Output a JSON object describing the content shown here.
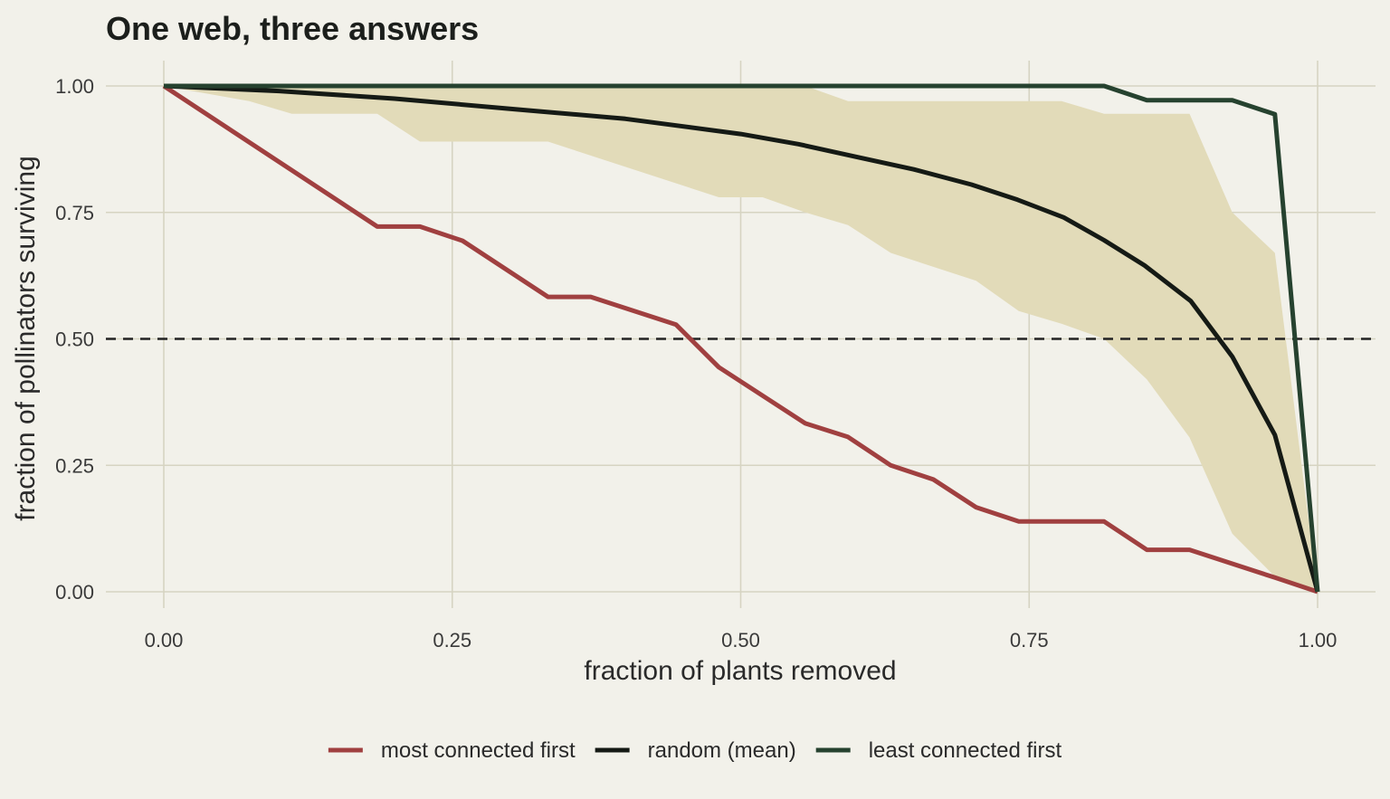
{
  "chart_data": {
    "type": "line",
    "title": "One web, three answers",
    "xlabel": "fraction of plants removed",
    "ylabel": "fraction of pollinators surviving",
    "xlim": [
      0,
      1
    ],
    "ylim": [
      0,
      1
    ],
    "x_ticks": [
      0,
      0.25,
      0.5,
      0.75,
      1.0
    ],
    "y_ticks": [
      0,
      0.25,
      0.5,
      0.75,
      1.0
    ],
    "x_tick_labels": [
      "0.00",
      "0.25",
      "0.50",
      "0.75",
      "1.00"
    ],
    "y_tick_labels": [
      "0.00",
      "0.25",
      "0.50",
      "0.75",
      "1.00"
    ],
    "grid": true,
    "legend_position": "bottom",
    "reference_line": {
      "y": 0.5,
      "style": "dashed",
      "color": "#222222"
    },
    "band": {
      "color": "#e2dbb9",
      "x": [
        0,
        0.037,
        0.074,
        0.111,
        0.185,
        0.222,
        0.333,
        0.407,
        0.481,
        0.519,
        0.556,
        0.593,
        0.63,
        0.704,
        0.741,
        0.778,
        0.815,
        0.852,
        0.889,
        0.926,
        0.963,
        1.0
      ],
      "lower": [
        1.0,
        0.985,
        0.97,
        0.945,
        0.945,
        0.89,
        0.89,
        0.835,
        0.78,
        0.78,
        0.75,
        0.725,
        0.67,
        0.615,
        0.555,
        0.53,
        0.5,
        0.42,
        0.305,
        0.115,
        0.03,
        0.0
      ],
      "upper": [
        1.0,
        1.0,
        1.0,
        1.0,
        1.0,
        1.0,
        1.0,
        1.0,
        1.0,
        1.0,
        1.0,
        0.97,
        0.97,
        0.97,
        0.97,
        0.97,
        0.945,
        0.945,
        0.945,
        0.75,
        0.67,
        0.0
      ]
    },
    "series": [
      {
        "name": "most connected first",
        "color": "#a04040",
        "x": [
          0,
          0.185,
          0.222,
          0.259,
          0.333,
          0.37,
          0.444,
          0.481,
          0.556,
          0.593,
          0.63,
          0.667,
          0.704,
          0.741,
          0.815,
          0.852,
          0.889,
          0.963,
          1.0
        ],
        "values": [
          1.0,
          0.722,
          0.722,
          0.694,
          0.583,
          0.583,
          0.528,
          0.444,
          0.333,
          0.306,
          0.25,
          0.222,
          0.167,
          0.139,
          0.139,
          0.083,
          0.083,
          0.028,
          0.0
        ]
      },
      {
        "name": "random (mean)",
        "color": "#151a15",
        "x": [
          0,
          0.1,
          0.2,
          0.3,
          0.4,
          0.5,
          0.55,
          0.6,
          0.65,
          0.7,
          0.74,
          0.78,
          0.815,
          0.85,
          0.89,
          0.926,
          0.963,
          1.0
        ],
        "values": [
          1.0,
          0.99,
          0.975,
          0.955,
          0.935,
          0.905,
          0.885,
          0.86,
          0.835,
          0.805,
          0.775,
          0.74,
          0.695,
          0.645,
          0.575,
          0.465,
          0.31,
          0.0
        ]
      },
      {
        "name": "least connected first",
        "color": "#26422f",
        "x": [
          0,
          0.815,
          0.852,
          0.926,
          0.963,
          1.0
        ],
        "values": [
          1.0,
          1.0,
          0.972,
          0.972,
          0.944,
          0.0
        ]
      }
    ]
  }
}
